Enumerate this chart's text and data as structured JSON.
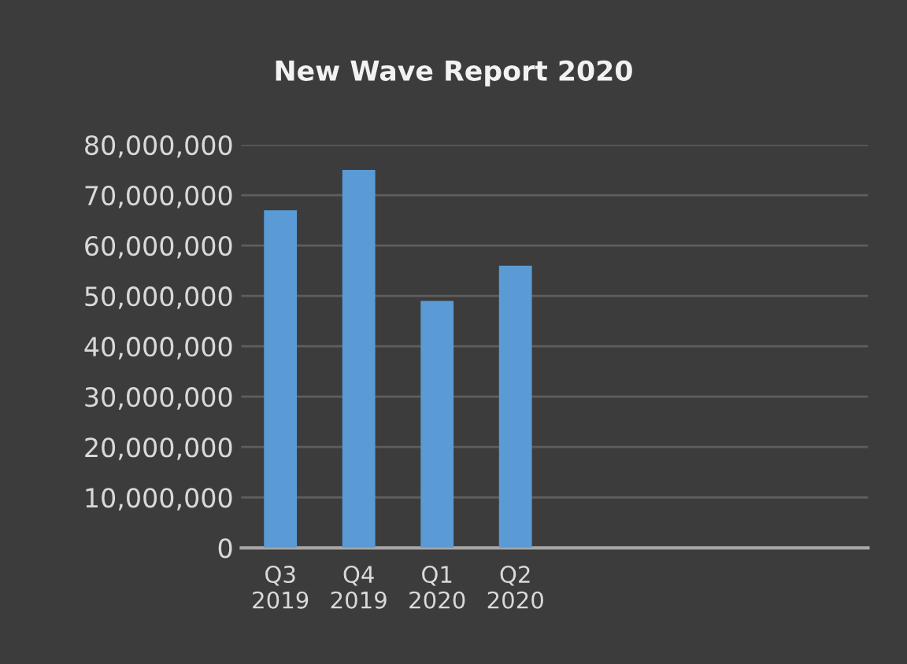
{
  "chart_data": {
    "type": "bar",
    "title": "New Wave Report 2020",
    "categories": [
      "Q3\n2019",
      "Q4\n2019",
      "Q1\n2020",
      "Q2\n2020",
      null,
      null,
      null,
      null
    ],
    "values": [
      67000000,
      75000000,
      49000000,
      56000000,
      null,
      null,
      null,
      null
    ],
    "color": "#5b9bd5",
    "ylim": [
      0,
      80000000
    ],
    "yticks": [
      {
        "value": 0,
        "label": "0"
      },
      {
        "value": 10000000,
        "label": "10,000,000"
      },
      {
        "value": 20000000,
        "label": "20,000,000"
      },
      {
        "value": 30000000,
        "label": "30,000,000"
      },
      {
        "value": 40000000,
        "label": "40,000,000"
      },
      {
        "value": 50000000,
        "label": "50,000,000"
      },
      {
        "value": 60000000,
        "label": "60,000,000"
      },
      {
        "value": 70000000,
        "label": "70,000,000"
      },
      {
        "value": 80000000,
        "label": "80,000,000"
      }
    ],
    "grid": "y",
    "legend": false
  }
}
